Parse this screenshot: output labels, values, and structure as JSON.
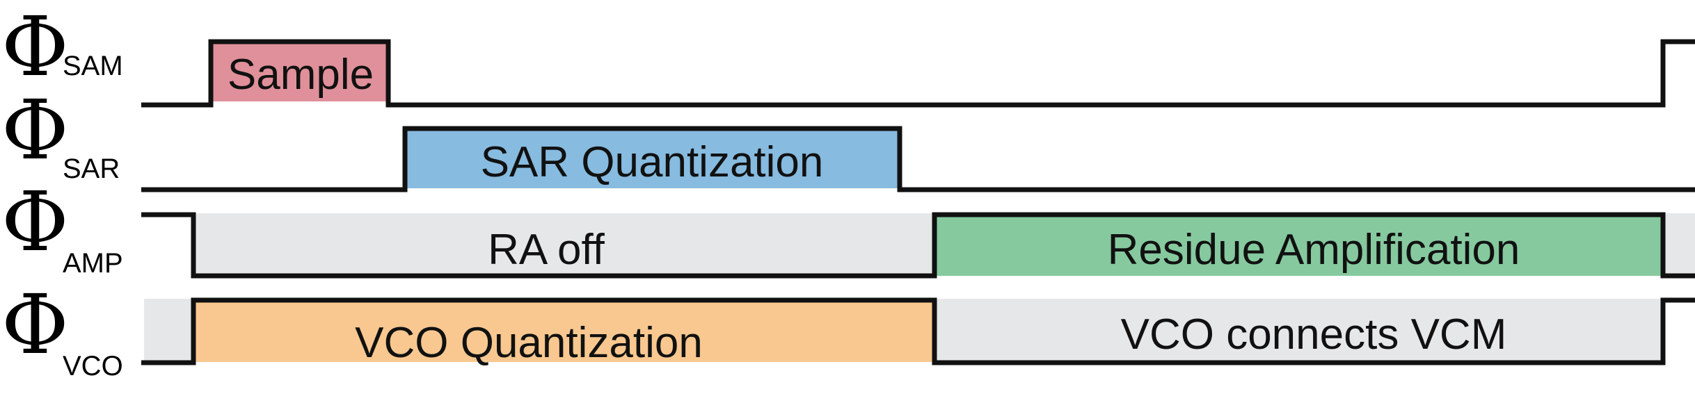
{
  "signals": [
    {
      "symbol": "Φ",
      "subscript": "SAM"
    },
    {
      "symbol": "Φ",
      "subscript": "SAR"
    },
    {
      "symbol": "Φ",
      "subscript": "AMP"
    },
    {
      "symbol": "Φ",
      "subscript": "VCO"
    }
  ],
  "phases": {
    "sample": "Sample",
    "sar_quantization": "SAR Quantization",
    "ra_off": "RA off",
    "residue_amplification": "Residue Amplification",
    "vco_quantization": "VCO Quantization",
    "vco_connects_vcm": "VCO connects VCM"
  },
  "colors": {
    "sample": "#e0909a",
    "sar_quantization": "#87bbe0",
    "ra_off": "#e6e7e9",
    "residue_amplification": "#86c99f",
    "vco_quantization": "#f8c890",
    "vco_connects_vcm": "#e6e7e9",
    "waveform": "#111111"
  }
}
